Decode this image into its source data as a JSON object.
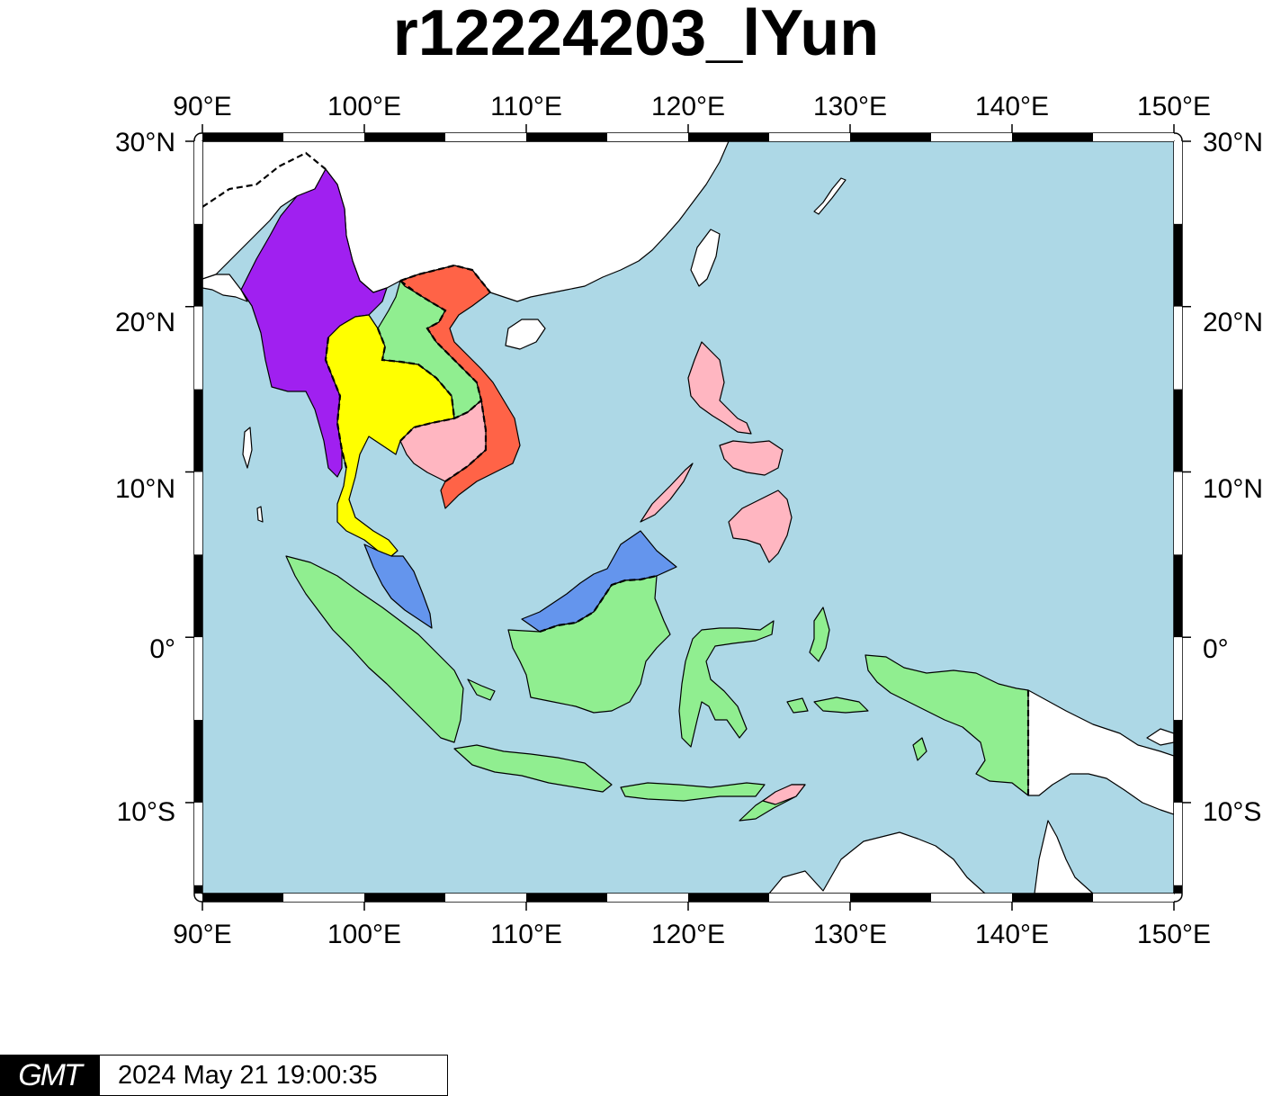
{
  "title": "r12224203_lYun",
  "axes": {
    "lon_labels": [
      "90°E",
      "100°E",
      "110°E",
      "120°E",
      "130°E",
      "140°E",
      "150°E"
    ],
    "lat_labels": [
      "30°N",
      "20°N",
      "10°N",
      "0°",
      "10°S"
    ],
    "lon_range": [
      90,
      150
    ],
    "lat_range": [
      -15.5,
      30
    ]
  },
  "colors": {
    "ocean": "#add8e6",
    "other_land": "#ffffff",
    "myanmar": "#a020f0",
    "thailand": "#ffff00",
    "laos": "#90ee90",
    "vietnam": "#ff6347",
    "cambodia": "#ffb6c1",
    "malaysia": "#6495ed",
    "indonesia": "#90ee90",
    "philippines": "#ffb6c1",
    "timor_leste": "#ffb6c1"
  },
  "footer": {
    "logo": "GMT",
    "timestamp": "2024 May 21 19:00:35"
  }
}
